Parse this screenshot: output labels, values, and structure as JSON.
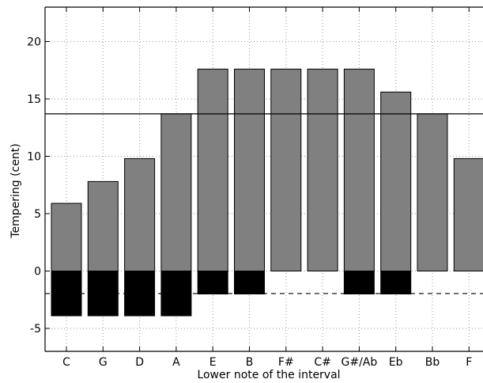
{
  "chart_data": {
    "type": "bar",
    "xlabel": "Lower note of the interval",
    "ylabel": "Tempering (cent)",
    "categories": [
      "C",
      "G",
      "D",
      "A",
      "E",
      "B",
      "F#",
      "C#",
      "G#/Ab",
      "Eb",
      "Bb",
      "F"
    ],
    "series": [
      {
        "values": [
          5.9,
          7.8,
          9.8,
          13.7,
          17.6,
          17.6,
          17.6,
          17.6,
          17.6,
          15.6,
          13.7,
          9.8
        ],
        "color": "#808080"
      },
      {
        "values": [
          -3.9,
          -3.9,
          -3.9,
          -3.9,
          -2.0,
          -2.0,
          0,
          0,
          -2.0,
          -2.0,
          0,
          0
        ],
        "color": "#000000"
      }
    ],
    "reference_lines": [
      {
        "y": 13.7,
        "style": "solid"
      },
      {
        "y": -1.96,
        "style": "dashed"
      }
    ],
    "yticks": [
      -5,
      0,
      5,
      10,
      15,
      20
    ],
    "ylim": [
      -7,
      23
    ],
    "grid": true
  }
}
